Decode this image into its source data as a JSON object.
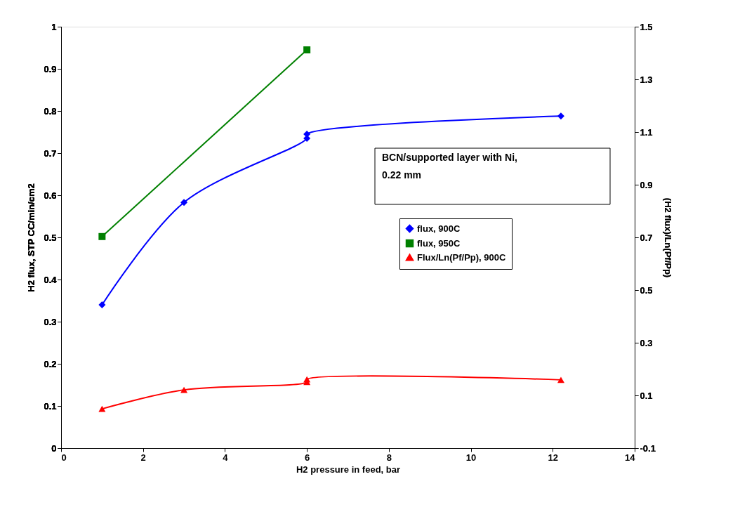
{
  "chart_data": {
    "type": "line",
    "xlabel": "H2 pressure in feed, bar",
    "ylabel": "H2 flux, STP CC/min/cm2",
    "y2label": "(H2 flux)/Ln(Pf/Pp)",
    "xlim": [
      0,
      14
    ],
    "xticks": [
      0,
      2,
      4,
      6,
      8,
      10,
      12,
      14
    ],
    "ylim": [
      0,
      1
    ],
    "yticks": [
      0,
      0.1,
      0.2,
      0.3,
      0.4,
      0.5,
      0.6,
      0.7,
      0.8,
      0.9,
      1
    ],
    "y2lim": [
      -0.1,
      1.5
    ],
    "y2ticks": [
      -0.1,
      0.1,
      0.3,
      0.5,
      0.7,
      0.9,
      1.1,
      1.3,
      1.5
    ],
    "grid": false,
    "legend": "right",
    "annotations": [
      "BCN/supported layer with Ni,\n0.22 mm"
    ],
    "series": [
      {
        "name": "flux, 900C",
        "color": "#0000ff",
        "marker": "diamond",
        "x": [
          1,
          3,
          6,
          6,
          12.2
        ],
        "values": [
          0.34,
          0.583,
          0.735,
          0.745,
          0.788
        ]
      },
      {
        "name": "flux, 950C",
        "color": "#008000",
        "marker": "square",
        "x": [
          1,
          6
        ],
        "values": [
          0.502,
          0.945
        ]
      },
      {
        "name": "Flux/Ln(Pf/Pp), 900C",
        "color": "#ff0000",
        "marker": "triangle",
        "axis": "y2",
        "x": [
          1,
          3,
          6,
          6,
          12.2
        ],
        "values": [
          0.049,
          0.121,
          0.151,
          0.161,
          0.159
        ]
      }
    ]
  }
}
